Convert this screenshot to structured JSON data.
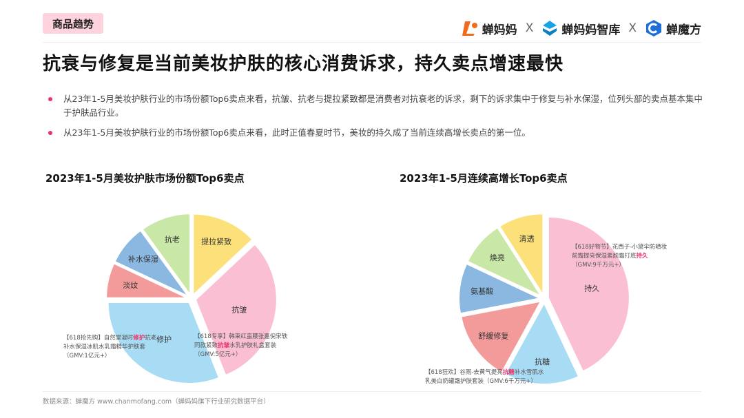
{
  "header": {
    "tag": "商品趋势",
    "logos": [
      {
        "name": "蝉妈妈",
        "icon": "chanmama-logo-icon",
        "color": "#f26b1d"
      },
      {
        "sep": "X"
      },
      {
        "name": "蝉妈妈智库",
        "icon": "zhiku-logo-icon",
        "color": "#1aa2e6"
      },
      {
        "sep": "X"
      },
      {
        "name": "蝉魔方",
        "icon": "chanmofang-logo-icon",
        "color": "#1f6fd6"
      }
    ]
  },
  "headline": "抗衰与修复是当前美妆护肤的核心消费诉求，持久卖点增速最快",
  "bullets": [
    "从23年1-5月美妆护肤行业的市场份额Top6卖点来看，抗皱、抗老与提拉紧致都是消费者对抗衰老的诉求，剩下的诉求集中于修复与补水保湿，位列头部的卖点基本集中于护肤品行业。",
    "从23年1-5月美妆护肤行业的市场份额Top6卖点来看，此时正值春夏时节，美妆的持久成了当前连续高增长卖点的第一位。"
  ],
  "chart_data": [
    {
      "type": "pie",
      "title": "2023年1-5月美妆护肤市场份额Top6卖点",
      "labels": [
        "提拉紧致",
        "抗皱",
        "修护",
        "淡纹",
        "补水保湿",
        "抗老"
      ],
      "values": [
        13,
        31,
        31,
        7,
        8,
        10
      ],
      "colors": [
        "#fce07a",
        "#fbbfd4",
        "#a8dcf4",
        "#f39b9b",
        "#8ab8e0",
        "#c9e7a6"
      ],
      "annotations": [
        {
          "segment": "抗皱",
          "lines": [
            "【618专享】韩束红蛮腰张嘉倪宋轶",
            "同款紧致抗皱水乳护肤礼盒套装",
            "（GMV:5亿元+）"
          ],
          "highlight": "抗皱"
        },
        {
          "segment": "修护",
          "lines": [
            "【618抢先购】自然堂凝时修护抗老",
            "补水保湿冰肌水乳霜精华护肤套",
            "（GMV:1亿元+）"
          ],
          "highlight": "修护"
        }
      ]
    },
    {
      "type": "pie",
      "title": "2023年1-5月连续高增长Top6卖点",
      "labels": [
        "持久",
        "抗糖",
        "舒缓修复",
        "氨基酸",
        "焕亮",
        "清透"
      ],
      "values": [
        43,
        15,
        14,
        10,
        9,
        9
      ],
      "colors": [
        "#fbbfd4",
        "#a8dcf4",
        "#f39b9b",
        "#8ab8e0",
        "#c9e7a6",
        "#fce07a"
      ],
      "annotations": [
        {
          "segment": "持久",
          "lines": [
            "【618好物节】花西子-小黛伞防晒妆",
            "前霜提亮保湿素颜霜打底持久",
            "（GMV:9千万元+）"
          ],
          "highlight": "持久"
        },
        {
          "segment": "抗糖",
          "lines": [
            "【618狂欢】谷雨-去黄气提亮抗糖补水雪肌水",
            "乳美白奶罐霜护肤套装（GMV:6千万元+）"
          ],
          "highlight": "抗糖"
        }
      ]
    }
  ],
  "footer": "数据来源：蝉魔方 www.chanmofang.com（蝉妈妈旗下行业研究数据平台）",
  "accent_color": "#e8346a"
}
